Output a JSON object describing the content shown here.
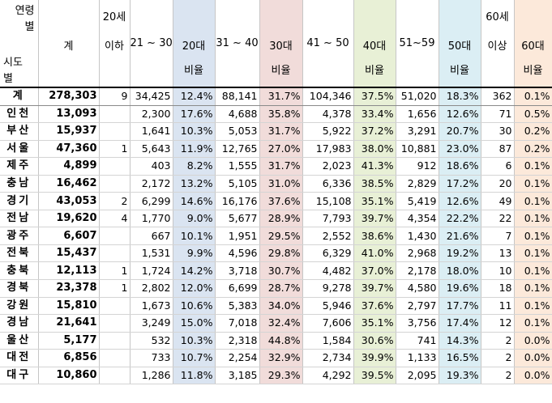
{
  "header": {
    "corner_top_1": "연령",
    "corner_top_2": "별",
    "corner_bottom_1": "시도",
    "corner_bottom_2": "별",
    "total": "계",
    "under20_line1": "20세",
    "under20_line2": "이하",
    "age_21_30": "21 ~ 30",
    "ratio20_line1": "20대",
    "ratio20_line2": "비율",
    "age_31_40": "31 ~ 40",
    "ratio30_line1": "30대",
    "ratio30_line2": "비율",
    "age_41_50": "41 ~ 50",
    "ratio40_line1": "40대",
    "ratio40_line2": "비율",
    "age_51_59": "51~59",
    "ratio50_line1": "50대",
    "ratio50_line2": "비율",
    "over60_line1": "60세",
    "over60_line2": "이상",
    "ratio60_line1": "60대",
    "ratio60_line2": "비율"
  },
  "rows": [
    {
      "region": "계",
      "total": "278,303",
      "under20": "9",
      "a21_30": "34,425",
      "r20": "12.4%",
      "a31_40": "88,141",
      "r30": "31.7%",
      "a41_50": "104,346",
      "r40": "37.5%",
      "a51_59": "51,020",
      "r50": "18.3%",
      "over60": "362",
      "r60": "0.1%"
    },
    {
      "region": "인천",
      "total": "13,093",
      "under20": "",
      "a21_30": "2,300",
      "r20": "17.6%",
      "a31_40": "4,688",
      "r30": "35.8%",
      "a41_50": "4,378",
      "r40": "33.4%",
      "a51_59": "1,656",
      "r50": "12.6%",
      "over60": "71",
      "r60": "0.5%"
    },
    {
      "region": "부산",
      "total": "15,937",
      "under20": "",
      "a21_30": "1,641",
      "r20": "10.3%",
      "a31_40": "5,053",
      "r30": "31.7%",
      "a41_50": "5,922",
      "r40": "37.2%",
      "a51_59": "3,291",
      "r50": "20.7%",
      "over60": "30",
      "r60": "0.2%"
    },
    {
      "region": "서울",
      "total": "47,360",
      "under20": "1",
      "a21_30": "5,643",
      "r20": "11.9%",
      "a31_40": "12,765",
      "r30": "27.0%",
      "a41_50": "17,983",
      "r40": "38.0%",
      "a51_59": "10,881",
      "r50": "23.0%",
      "over60": "87",
      "r60": "0.2%"
    },
    {
      "region": "제주",
      "total": "4,899",
      "under20": "",
      "a21_30": "403",
      "r20": "8.2%",
      "a31_40": "1,555",
      "r30": "31.7%",
      "a41_50": "2,023",
      "r40": "41.3%",
      "a51_59": "912",
      "r50": "18.6%",
      "over60": "6",
      "r60": "0.1%"
    },
    {
      "region": "충남",
      "total": "16,462",
      "under20": "",
      "a21_30": "2,172",
      "r20": "13.2%",
      "a31_40": "5,105",
      "r30": "31.0%",
      "a41_50": "6,336",
      "r40": "38.5%",
      "a51_59": "2,829",
      "r50": "17.2%",
      "over60": "20",
      "r60": "0.1%"
    },
    {
      "region": "경기",
      "total": "43,053",
      "under20": "2",
      "a21_30": "6,299",
      "r20": "14.6%",
      "a31_40": "16,176",
      "r30": "37.6%",
      "a41_50": "15,108",
      "r40": "35.1%",
      "a51_59": "5,419",
      "r50": "12.6%",
      "over60": "49",
      "r60": "0.1%"
    },
    {
      "region": "전남",
      "total": "19,620",
      "under20": "4",
      "a21_30": "1,770",
      "r20": "9.0%",
      "a31_40": "5,677",
      "r30": "28.9%",
      "a41_50": "7,793",
      "r40": "39.7%",
      "a51_59": "4,354",
      "r50": "22.2%",
      "over60": "22",
      "r60": "0.1%"
    },
    {
      "region": "광주",
      "total": "6,607",
      "under20": "",
      "a21_30": "667",
      "r20": "10.1%",
      "a31_40": "1,951",
      "r30": "29.5%",
      "a41_50": "2,552",
      "r40": "38.6%",
      "a51_59": "1,430",
      "r50": "21.6%",
      "over60": "7",
      "r60": "0.1%"
    },
    {
      "region": "전북",
      "total": "15,437",
      "under20": "",
      "a21_30": "1,531",
      "r20": "9.9%",
      "a31_40": "4,596",
      "r30": "29.8%",
      "a41_50": "6,329",
      "r40": "41.0%",
      "a51_59": "2,968",
      "r50": "19.2%",
      "over60": "13",
      "r60": "0.1%"
    },
    {
      "region": "충북",
      "total": "12,113",
      "under20": "1",
      "a21_30": "1,724",
      "r20": "14.2%",
      "a31_40": "3,718",
      "r30": "30.7%",
      "a41_50": "4,482",
      "r40": "37.0%",
      "a51_59": "2,178",
      "r50": "18.0%",
      "over60": "10",
      "r60": "0.1%"
    },
    {
      "region": "경북",
      "total": "23,378",
      "under20": "1",
      "a21_30": "2,802",
      "r20": "12.0%",
      "a31_40": "6,699",
      "r30": "28.7%",
      "a41_50": "9,278",
      "r40": "39.7%",
      "a51_59": "4,580",
      "r50": "19.6%",
      "over60": "18",
      "r60": "0.1%"
    },
    {
      "region": "강원",
      "total": "15,810",
      "under20": "",
      "a21_30": "1,673",
      "r20": "10.6%",
      "a31_40": "5,383",
      "r30": "34.0%",
      "a41_50": "5,946",
      "r40": "37.6%",
      "a51_59": "2,797",
      "r50": "17.7%",
      "over60": "11",
      "r60": "0.1%"
    },
    {
      "region": "경남",
      "total": "21,641",
      "under20": "",
      "a21_30": "3,249",
      "r20": "15.0%",
      "a31_40": "7,018",
      "r30": "32.4%",
      "a41_50": "7,606",
      "r40": "35.1%",
      "a51_59": "3,756",
      "r50": "17.4%",
      "over60": "12",
      "r60": "0.1%"
    },
    {
      "region": "울산",
      "total": "5,177",
      "under20": "",
      "a21_30": "532",
      "r20": "10.3%",
      "a31_40": "2,318",
      "r30": "44.8%",
      "a41_50": "1,584",
      "r40": "30.6%",
      "a51_59": "741",
      "r50": "14.3%",
      "over60": "2",
      "r60": "0.0%"
    },
    {
      "region": "대전",
      "total": "6,856",
      "under20": "",
      "a21_30": "733",
      "r20": "10.7%",
      "a31_40": "2,254",
      "r30": "32.9%",
      "a41_50": "2,734",
      "r40": "39.9%",
      "a51_59": "1,133",
      "r50": "16.5%",
      "over60": "2",
      "r60": "0.0%"
    },
    {
      "region": "대구",
      "total": "10,860",
      "under20": "",
      "a21_30": "1,286",
      "r20": "11.8%",
      "a31_40": "3,185",
      "r30": "29.3%",
      "a41_50": "4,292",
      "r40": "39.5%",
      "a51_59": "2,095",
      "r50": "19.3%",
      "over60": "2",
      "r60": "0.0%"
    }
  ],
  "colors": {
    "ratio20_bg": "#dae4f1",
    "ratio30_bg": "#f1dcda",
    "ratio40_bg": "#e8f0d6",
    "ratio50_bg": "#dbeef4",
    "ratio60_bg": "#fce9da"
  }
}
